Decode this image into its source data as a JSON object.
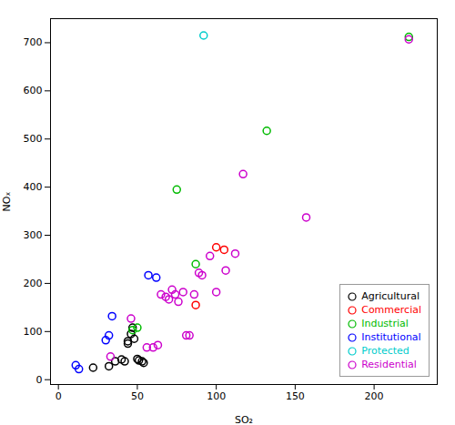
{
  "chart_data": {
    "type": "scatter",
    "xlabel": "SO₂",
    "ylabel": "NOₓ",
    "xlim": [
      -5,
      240
    ],
    "ylim": [
      -10,
      750
    ],
    "xticks": [
      0,
      50,
      100,
      150,
      200
    ],
    "yticks": [
      0,
      100,
      200,
      300,
      400,
      500,
      600,
      700
    ],
    "grid": false,
    "legend": "lower right",
    "marker": "circle",
    "series": [
      {
        "name": "Agricultural",
        "color": "#000000",
        "x": [
          22,
          32,
          36,
          40,
          42,
          44,
          44,
          46,
          47,
          48,
          50,
          51,
          53,
          54
        ],
        "y": [
          25,
          28,
          38,
          42,
          38,
          75,
          80,
          95,
          108,
          85,
          43,
          40,
          38,
          35
        ]
      },
      {
        "name": "Commercial",
        "color": "#FF0000",
        "x": [
          87,
          100,
          105
        ],
        "y": [
          155,
          275,
          270
        ]
      },
      {
        "name": "Industrial",
        "color": "#00BB00",
        "x": [
          47,
          50,
          75,
          87,
          132,
          222
        ],
        "y": [
          103,
          108,
          395,
          240,
          517,
          712
        ]
      },
      {
        "name": "Institutional",
        "color": "#0000FF",
        "x": [
          11,
          13,
          30,
          32,
          34,
          57,
          62
        ],
        "y": [
          30,
          22,
          82,
          92,
          132,
          217,
          212
        ]
      },
      {
        "name": "Protected",
        "color": "#00CCCC",
        "x": [
          92
        ],
        "y": [
          715
        ]
      },
      {
        "name": "Residential",
        "color": "#CC00CC",
        "x": [
          33,
          46,
          56,
          60,
          63,
          65,
          68,
          70,
          72,
          74,
          76,
          79,
          81,
          83,
          86,
          89,
          91,
          96,
          100,
          106,
          112,
          117,
          157,
          222
        ],
        "y": [
          48,
          127,
          67,
          67,
          72,
          177,
          172,
          167,
          187,
          177,
          162,
          182,
          92,
          92,
          177,
          222,
          217,
          257,
          182,
          227,
          262,
          427,
          337,
          707
        ]
      }
    ]
  }
}
